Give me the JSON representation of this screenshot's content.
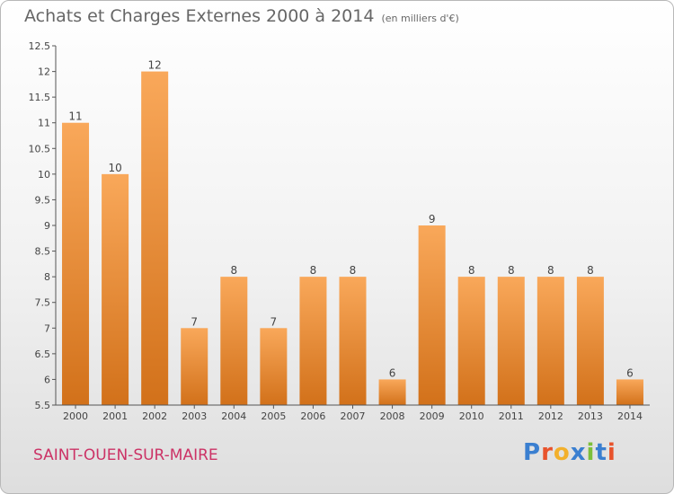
{
  "header": {
    "title": "Achats et Charges Externes 2000 à 2014",
    "unit": "(en milliers d'€)"
  },
  "footer": {
    "city": "SAINT-OUEN-SUR-MAIRE",
    "logo": "Proxiti",
    "logo_colors": [
      "#3a7fd0",
      "#e8532c",
      "#f2b02c",
      "#3a7fd0",
      "#7cbf3a",
      "#3a7fd0",
      "#e8532c"
    ]
  },
  "colors": {
    "bar_light": "#f9a85a",
    "bar_dark": "#d2711a",
    "axis": "#555555",
    "grid": "#cccccc",
    "label": "#444444"
  },
  "chart_data": {
    "type": "bar",
    "title": "Achats et Charges Externes 2000 à 2014",
    "subtitle": "(en milliers d'€)",
    "categories": [
      "2000",
      "2001",
      "2002",
      "2003",
      "2004",
      "2005",
      "2006",
      "2007",
      "2008",
      "2009",
      "2010",
      "2011",
      "2012",
      "2013",
      "2014"
    ],
    "values": [
      11,
      10,
      12,
      7,
      8,
      7,
      8,
      8,
      6,
      9,
      8,
      8,
      8,
      8,
      6
    ],
    "ylim": [
      5.5,
      12.5
    ],
    "yticks": [
      "5.5",
      "6",
      "6.5",
      "7",
      "7.5",
      "8",
      "8.5",
      "9",
      "9.5",
      "10",
      "10.5",
      "11",
      "11.5",
      "12",
      "12.5"
    ],
    "grid": false,
    "legend": "none"
  }
}
